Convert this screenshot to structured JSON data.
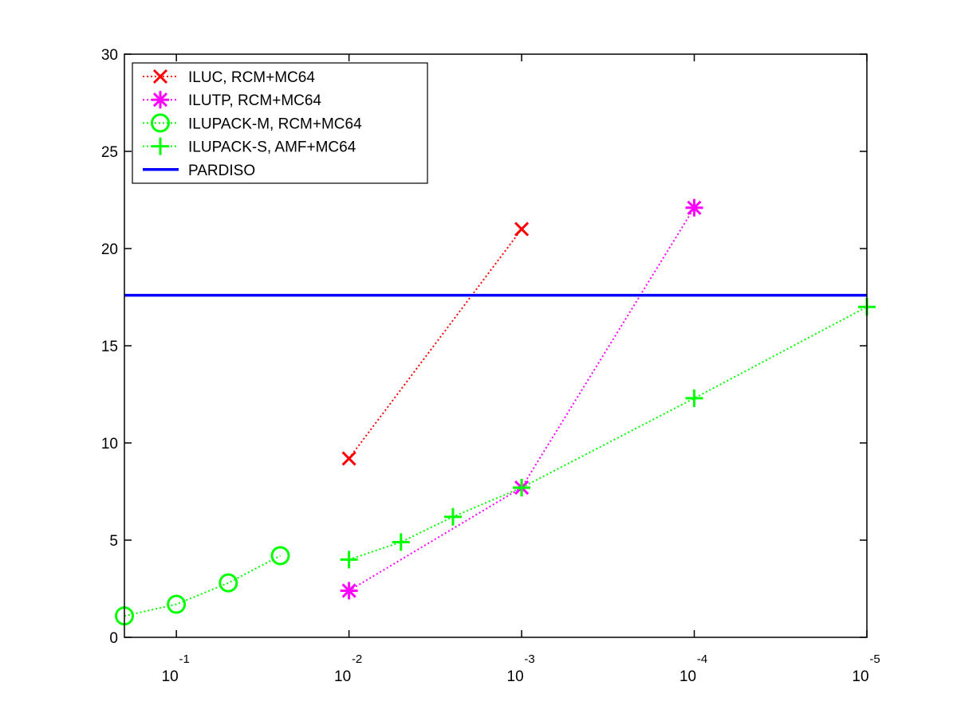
{
  "chart_data": {
    "type": "line",
    "title": "",
    "xlabel": "",
    "ylabel": "",
    "x_scale": "log",
    "x_reversed": true,
    "xlim": [
      0.2,
      1e-05
    ],
    "ylim": [
      0,
      30
    ],
    "yticks": [
      0,
      5,
      10,
      15,
      20,
      25,
      30
    ],
    "xticks": [
      {
        "value": 0.1,
        "base": "10",
        "exp": "-1"
      },
      {
        "value": 0.01,
        "base": "10",
        "exp": "-2"
      },
      {
        "value": 0.001,
        "base": "10",
        "exp": "-3"
      },
      {
        "value": 0.0001,
        "base": "10",
        "exp": "-4"
      },
      {
        "value": 1e-05,
        "base": "10",
        "exp": "-5"
      }
    ],
    "grid": false,
    "legend_position": "top-left",
    "series": [
      {
        "name": "ILUC, RCM+MC64",
        "color": "#ff0000",
        "marker": "x",
        "line_style": "dotted",
        "x": [
          0.01,
          0.001
        ],
        "y": [
          9.2,
          21.0
        ]
      },
      {
        "name": "ILUTP, RCM+MC64",
        "color": "#ff00ff",
        "marker": "asterisk",
        "line_style": "dotted",
        "x": [
          0.01,
          0.001,
          0.0001
        ],
        "y": [
          2.4,
          7.7,
          22.1
        ]
      },
      {
        "name": "ILUPACK-M, RCM+MC64",
        "color": "#00ff00",
        "marker": "circle",
        "line_style": "dotted",
        "x": [
          0.2,
          0.1,
          0.05,
          0.025
        ],
        "y": [
          1.1,
          1.7,
          2.8,
          4.2
        ]
      },
      {
        "name": "ILUPACK-S, AMF+MC64",
        "color": "#00ff00",
        "marker": "plus",
        "line_style": "dotted",
        "x": [
          0.01,
          0.005,
          0.0025,
          0.001,
          0.0001,
          1e-05
        ],
        "y": [
          4.0,
          4.9,
          6.2,
          7.7,
          12.3,
          17.0
        ]
      },
      {
        "name": "PARDISO",
        "color": "#0000ff",
        "marker": "none",
        "line_style": "solid",
        "x": [
          0.2,
          1e-05
        ],
        "y": [
          17.6,
          17.6
        ]
      }
    ]
  }
}
